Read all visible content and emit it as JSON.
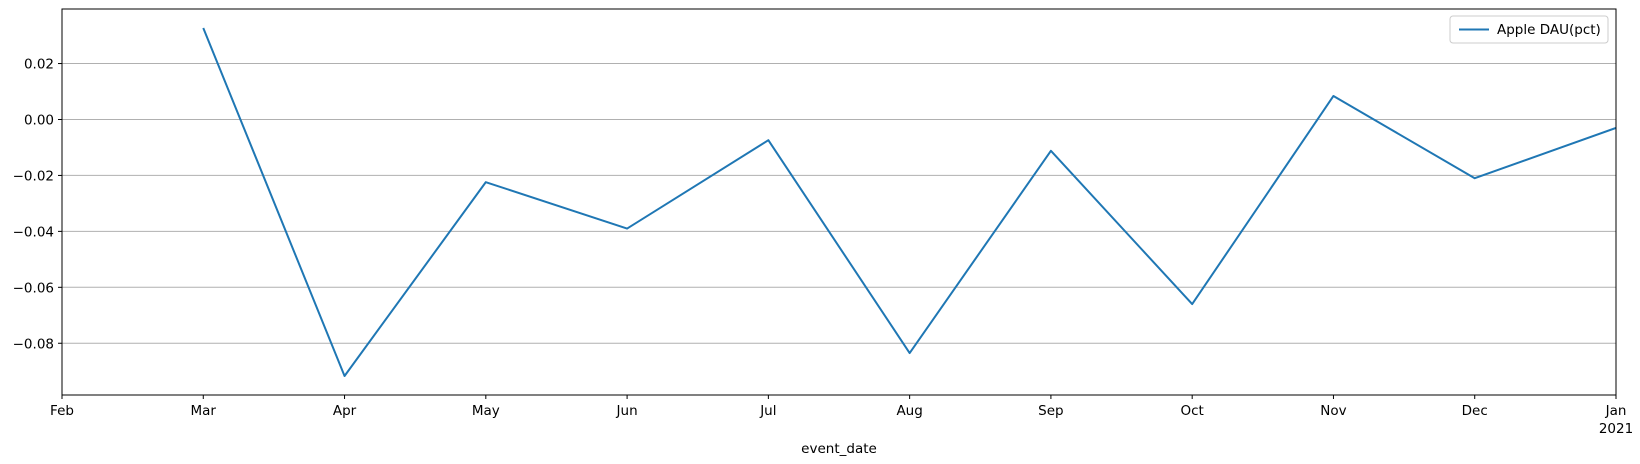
{
  "chart_data": {
    "type": "line",
    "xlabel": "event_date",
    "ylabel": "",
    "x": [
      "2020-03",
      "2020-04",
      "2020-05",
      "2020-06",
      "2020-07",
      "2020-08",
      "2020-09",
      "2020-10",
      "2020-11",
      "2020-12",
      "2021-01"
    ],
    "x_tick_labels": [
      "Feb",
      "Mar",
      "Apr",
      "May",
      "Jun",
      "Jul",
      "Aug",
      "Sep",
      "Oct",
      "Nov",
      "Dec",
      "Jan"
    ],
    "x_tick_year_label": "2021",
    "xlim": [
      "2020-02",
      "2021-01"
    ],
    "y_tick_labels": [
      "0.02",
      "0.00",
      "−0.02",
      "−0.04",
      "−0.06",
      "−0.08"
    ],
    "ylim": [
      -0.0985,
      0.0395
    ],
    "grid": "y",
    "series": [
      {
        "name": "Apple DAU(pct)",
        "color": "#1f77b4",
        "values": [
          0.0327,
          -0.0917,
          -0.0224,
          -0.039,
          -0.0074,
          -0.0835,
          -0.0112,
          -0.066,
          0.0084,
          -0.021,
          -0.003
        ]
      }
    ],
    "legend": "top-right"
  }
}
